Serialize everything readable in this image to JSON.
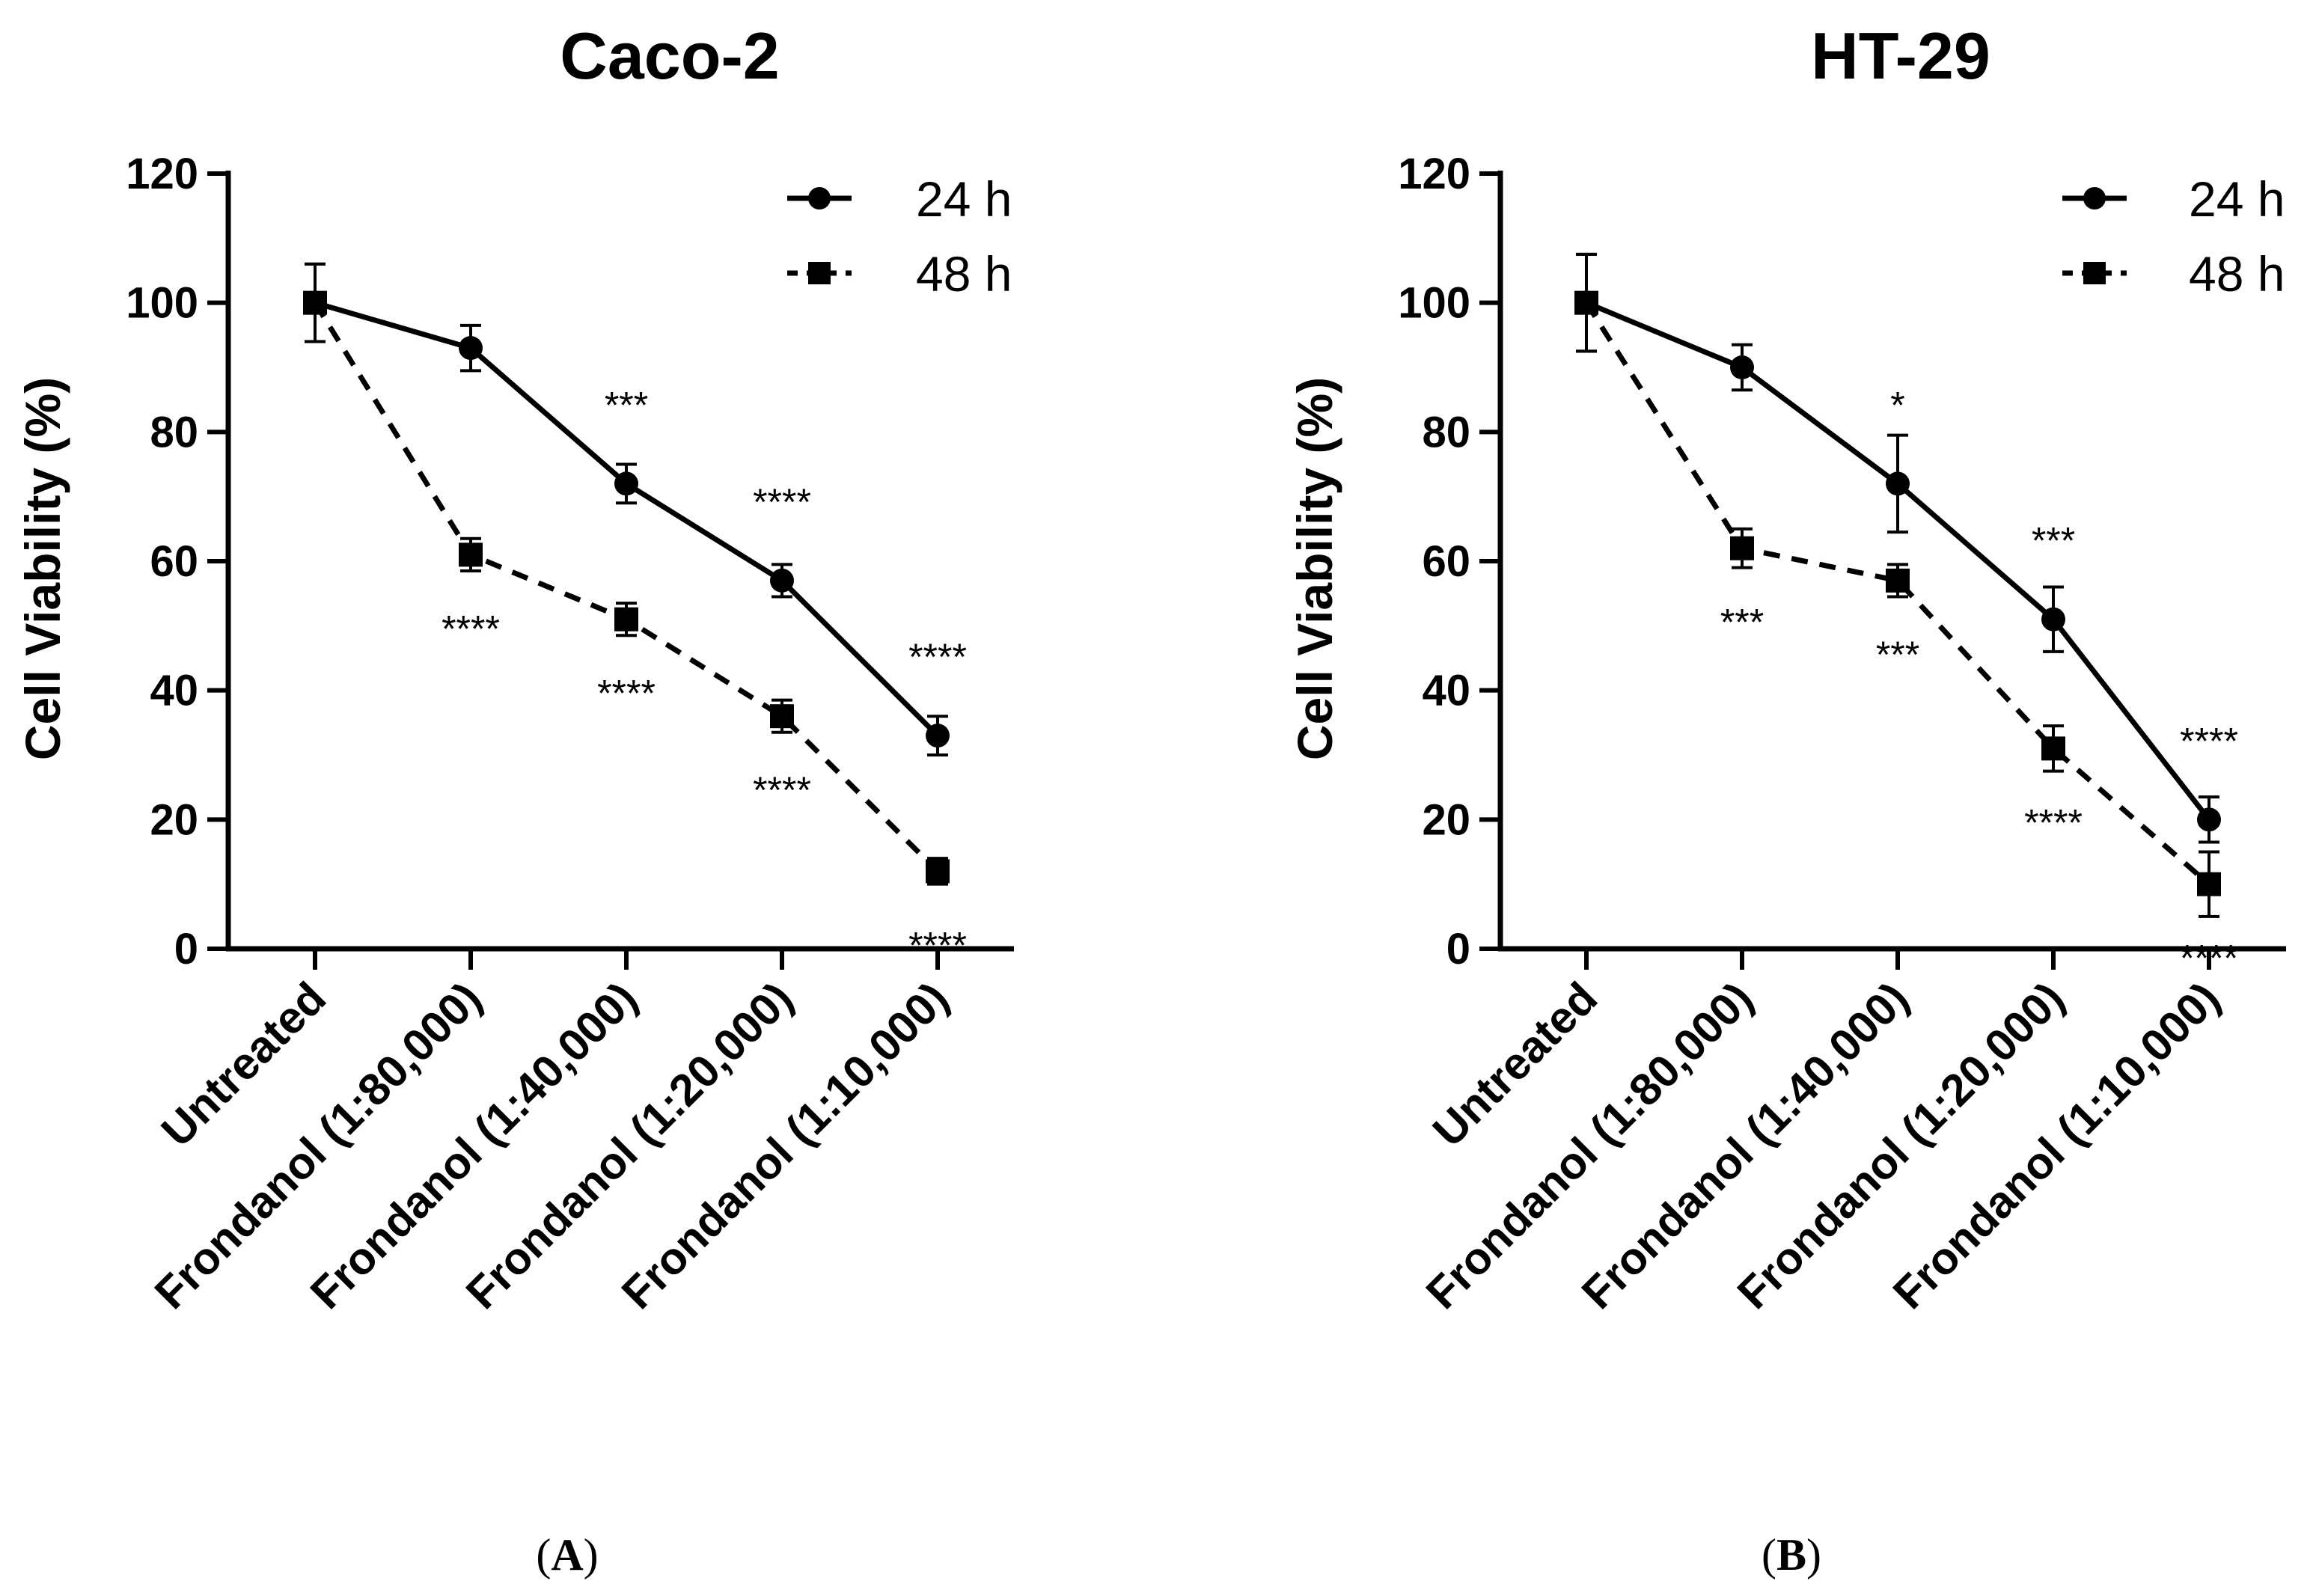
{
  "chart_data": [
    {
      "panel": "A",
      "type": "line",
      "title": "Caco-2",
      "ylabel": "Cell Viability (%)",
      "xlabel": "",
      "ylim": [
        0,
        120
      ],
      "yticks": [
        "0",
        "20",
        "40",
        "60",
        "80",
        "100",
        "120"
      ],
      "categories": [
        "Untreated",
        "Frondanol (1:80,000)",
        "Frondanol (1:40,000)",
        "Frondanol (1:20,000)",
        "Frondanol (1:10,000)"
      ],
      "legend_position": "top-right",
      "series": [
        {
          "name": "24 h",
          "style": "solid",
          "marker": "circle",
          "values": [
            100,
            93,
            72,
            57,
            33
          ],
          "errors": [
            6,
            3.5,
            3,
            2.5,
            3
          ],
          "significance": [
            "",
            "",
            "***",
            "****",
            "****"
          ]
        },
        {
          "name": "48 h",
          "style": "dashed",
          "marker": "square",
          "values": [
            100,
            61,
            51,
            36,
            12
          ],
          "errors": [
            6,
            2.5,
            2.5,
            2.5,
            2
          ],
          "significance": [
            "",
            "****",
            "****",
            "****",
            "****"
          ]
        }
      ]
    },
    {
      "panel": "B",
      "type": "line",
      "title": "HT-29",
      "ylabel": "Cell Viability (%)",
      "xlabel": "",
      "ylim": [
        0,
        120
      ],
      "yticks": [
        "0",
        "20",
        "40",
        "60",
        "80",
        "100",
        "120"
      ],
      "categories": [
        "Untreated",
        "Frondanol (1:80,000)",
        "Frondanol (1:40,000)",
        "Frondanol (1:20,000)",
        "Frondanol (1:10,000)"
      ],
      "legend_position": "top-right",
      "series": [
        {
          "name": "24 h",
          "style": "solid",
          "marker": "circle",
          "values": [
            100,
            90,
            72,
            51,
            20
          ],
          "errors": [
            7.5,
            3.5,
            7.5,
            5,
            3.5
          ],
          "significance": [
            "",
            "",
            "*",
            "***",
            "****"
          ]
        },
        {
          "name": "48 h",
          "style": "dashed",
          "marker": "square",
          "values": [
            100,
            62,
            57,
            31,
            10
          ],
          "errors": [
            7.5,
            3,
            2.5,
            3.5,
            5
          ],
          "significance": [
            "",
            "***",
            "***",
            "****",
            "****"
          ]
        }
      ]
    }
  ],
  "labels": {
    "panel_a": "A",
    "panel_b": "B",
    "paren_open": "(",
    "paren_close": ")"
  }
}
